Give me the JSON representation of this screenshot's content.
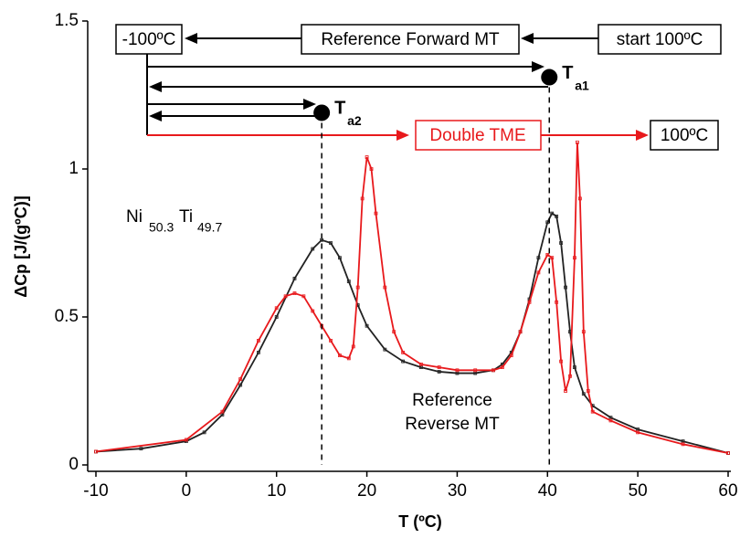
{
  "chart_data": {
    "type": "line",
    "xlabel": "T (ºC)",
    "ylabel": "ΔCp [J/(gºC)]",
    "xlim": [
      -10,
      60
    ],
    "xticks": [
      -10,
      0,
      10,
      20,
      30,
      40,
      50,
      60
    ],
    "ylim": [
      0,
      1.5
    ],
    "yticks": [
      0,
      0.5,
      1,
      1.5
    ],
    "series": [
      {
        "name": "Reference Reverse MT",
        "color": "#222222",
        "x": [
          -10,
          -5,
          0,
          2,
          4,
          6,
          8,
          10,
          12,
          14,
          15,
          16,
          17,
          18,
          19,
          20,
          22,
          24,
          26,
          28,
          30,
          32,
          34,
          35,
          36,
          37,
          38,
          39,
          40,
          40.5,
          41,
          41.5,
          42,
          42.5,
          43,
          44,
          45,
          47,
          50,
          55,
          60
        ],
        "values": [
          0.045,
          0.055,
          0.08,
          0.11,
          0.17,
          0.27,
          0.38,
          0.5,
          0.63,
          0.73,
          0.76,
          0.75,
          0.7,
          0.62,
          0.54,
          0.47,
          0.39,
          0.35,
          0.33,
          0.315,
          0.31,
          0.31,
          0.32,
          0.34,
          0.38,
          0.45,
          0.56,
          0.7,
          0.82,
          0.85,
          0.84,
          0.75,
          0.6,
          0.45,
          0.33,
          0.24,
          0.2,
          0.16,
          0.12,
          0.08,
          0.04
        ]
      },
      {
        "name": "Double TME",
        "color": "#e8191c",
        "x": [
          -10,
          0,
          4,
          6,
          8,
          10,
          11,
          12,
          13,
          14,
          15,
          16,
          17,
          18,
          18.5,
          19,
          19.5,
          20,
          20.5,
          21,
          22,
          23,
          24,
          26,
          28,
          30,
          32,
          34,
          35,
          36,
          37,
          38,
          39,
          40,
          40.5,
          41,
          41.5,
          42,
          42.5,
          43,
          43.3,
          43.6,
          44,
          44.5,
          45,
          47,
          50,
          55,
          60
        ],
        "values": [
          0.045,
          0.085,
          0.18,
          0.29,
          0.42,
          0.53,
          0.57,
          0.58,
          0.57,
          0.52,
          0.47,
          0.42,
          0.37,
          0.36,
          0.4,
          0.6,
          0.9,
          1.04,
          1.0,
          0.85,
          0.6,
          0.45,
          0.38,
          0.34,
          0.33,
          0.32,
          0.32,
          0.32,
          0.33,
          0.37,
          0.45,
          0.55,
          0.65,
          0.71,
          0.7,
          0.55,
          0.35,
          0.25,
          0.3,
          0.7,
          1.09,
          0.9,
          0.45,
          0.25,
          0.18,
          0.15,
          0.11,
          0.07,
          0.04
        ]
      }
    ],
    "markers": [
      {
        "label": "T",
        "sub": "a1",
        "x": 40.2,
        "y": 1.31
      },
      {
        "label": "T",
        "sub": "a2",
        "x": 15,
        "y": 1.19
      }
    ],
    "annotations": {
      "cold": "-100ºC",
      "forward": "Reference Forward MT",
      "start": "start 100ºC",
      "end": "100ºC",
      "ref1": "Reference",
      "ref2": "Reverse MT",
      "alloy": [
        "Ni",
        "50.3",
        "Ti",
        "49.7"
      ]
    }
  }
}
